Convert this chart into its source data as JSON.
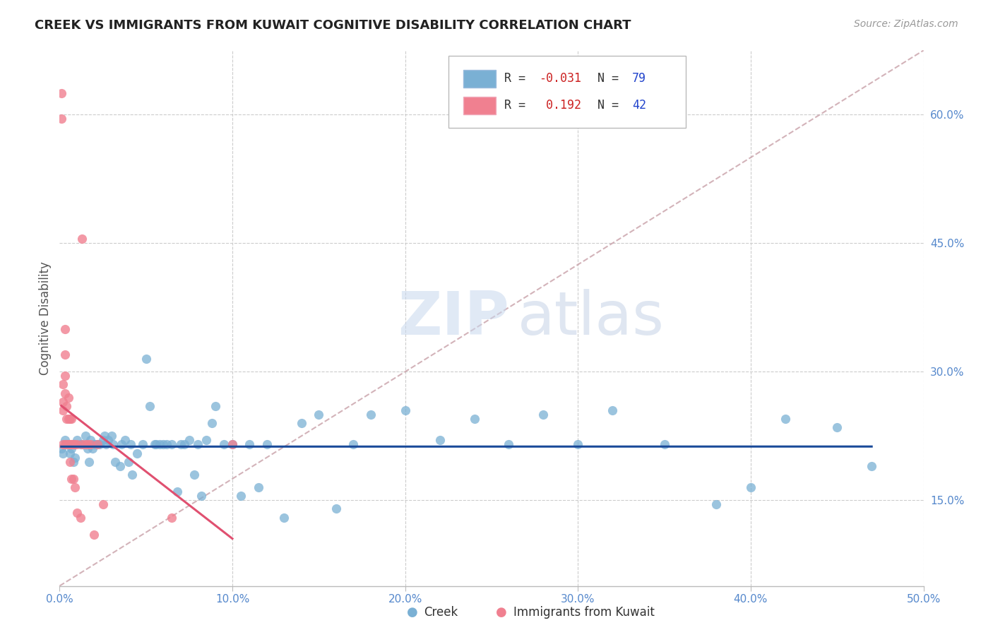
{
  "title": "CREEK VS IMMIGRANTS FROM KUWAIT COGNITIVE DISABILITY CORRELATION CHART",
  "source": "Source: ZipAtlas.com",
  "ylabel": "Cognitive Disability",
  "xlim": [
    0.0,
    0.5
  ],
  "ylim": [
    0.05,
    0.675
  ],
  "xticks": [
    0.0,
    0.1,
    0.2,
    0.3,
    0.4,
    0.5
  ],
  "yticks_right": [
    0.15,
    0.3,
    0.45,
    0.6
  ],
  "ytick_labels_right": [
    "15.0%",
    "30.0%",
    "45.0%",
    "60.0%"
  ],
  "xtick_labels": [
    "0.0%",
    "10.0%",
    "20.0%",
    "30.0%",
    "40.0%",
    "50.0%"
  ],
  "creek_color": "#7ab0d4",
  "kuwait_color": "#f08090",
  "creek_line_color": "#1a4a99",
  "kuwait_line_color": "#e05070",
  "diagonal_color": "#c8a0a8",
  "background_color": "#ffffff",
  "watermark_zip": "ZIP",
  "watermark_atlas": "atlas",
  "creek_x": [
    0.001,
    0.002,
    0.003,
    0.004,
    0.005,
    0.006,
    0.007,
    0.008,
    0.009,
    0.01,
    0.012,
    0.013,
    0.015,
    0.016,
    0.017,
    0.018,
    0.019,
    0.02,
    0.021,
    0.022,
    0.023,
    0.025,
    0.026,
    0.027,
    0.028,
    0.03,
    0.031,
    0.032,
    0.035,
    0.036,
    0.038,
    0.04,
    0.041,
    0.042,
    0.045,
    0.048,
    0.05,
    0.052,
    0.055,
    0.056,
    0.058,
    0.06,
    0.062,
    0.065,
    0.068,
    0.07,
    0.072,
    0.075,
    0.078,
    0.08,
    0.082,
    0.085,
    0.088,
    0.09,
    0.095,
    0.1,
    0.105,
    0.11,
    0.115,
    0.12,
    0.13,
    0.14,
    0.15,
    0.16,
    0.17,
    0.18,
    0.2,
    0.22,
    0.24,
    0.26,
    0.28,
    0.3,
    0.32,
    0.35,
    0.38,
    0.4,
    0.42,
    0.45,
    0.47
  ],
  "creek_y": [
    0.21,
    0.205,
    0.22,
    0.215,
    0.215,
    0.205,
    0.21,
    0.195,
    0.2,
    0.22,
    0.215,
    0.215,
    0.225,
    0.21,
    0.195,
    0.22,
    0.21,
    0.215,
    0.215,
    0.215,
    0.215,
    0.22,
    0.225,
    0.215,
    0.22,
    0.225,
    0.215,
    0.195,
    0.19,
    0.215,
    0.22,
    0.195,
    0.215,
    0.18,
    0.205,
    0.215,
    0.315,
    0.26,
    0.215,
    0.215,
    0.215,
    0.215,
    0.215,
    0.215,
    0.16,
    0.215,
    0.215,
    0.22,
    0.18,
    0.215,
    0.155,
    0.22,
    0.24,
    0.26,
    0.215,
    0.215,
    0.155,
    0.215,
    0.165,
    0.215,
    0.13,
    0.24,
    0.25,
    0.14,
    0.215,
    0.25,
    0.255,
    0.22,
    0.245,
    0.215,
    0.25,
    0.215,
    0.255,
    0.215,
    0.145,
    0.165,
    0.245,
    0.235,
    0.19
  ],
  "kuwait_x": [
    0.001,
    0.001,
    0.002,
    0.002,
    0.002,
    0.002,
    0.003,
    0.003,
    0.003,
    0.003,
    0.003,
    0.004,
    0.004,
    0.004,
    0.005,
    0.005,
    0.005,
    0.006,
    0.006,
    0.006,
    0.007,
    0.007,
    0.007,
    0.007,
    0.008,
    0.008,
    0.008,
    0.009,
    0.009,
    0.01,
    0.01,
    0.012,
    0.013,
    0.013,
    0.015,
    0.016,
    0.018,
    0.02,
    0.022,
    0.025,
    0.065,
    0.1
  ],
  "kuwait_y": [
    0.625,
    0.595,
    0.285,
    0.265,
    0.255,
    0.215,
    0.35,
    0.32,
    0.295,
    0.275,
    0.215,
    0.26,
    0.245,
    0.215,
    0.27,
    0.245,
    0.215,
    0.245,
    0.215,
    0.195,
    0.245,
    0.215,
    0.215,
    0.175,
    0.215,
    0.215,
    0.175,
    0.215,
    0.165,
    0.215,
    0.135,
    0.13,
    0.455,
    0.215,
    0.215,
    0.215,
    0.215,
    0.11,
    0.215,
    0.145,
    0.13,
    0.215
  ]
}
